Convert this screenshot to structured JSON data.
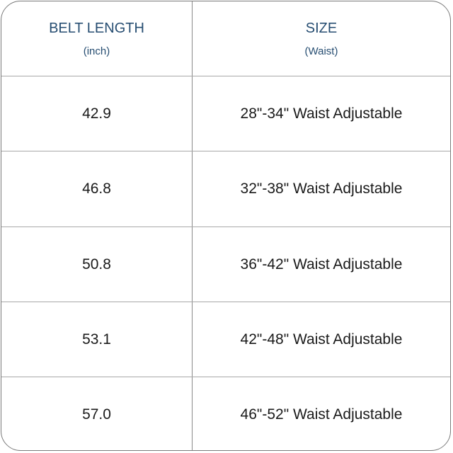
{
  "header": {
    "col1": {
      "title": "BELT LENGTH",
      "subtitle": "(inch)"
    },
    "col2": {
      "title": "SIZE",
      "subtitle": "(Waist)"
    }
  },
  "rows": [
    {
      "length": "42.9",
      "size": "28\"-34\" Waist Adjustable"
    },
    {
      "length": "46.8",
      "size": "32\"-38\" Waist Adjustable"
    },
    {
      "length": "50.8",
      "size": "36\"-42\" Waist Adjustable"
    },
    {
      "length": "53.1",
      "size": "42\"-48\" Waist Adjustable"
    },
    {
      "length": "57.0",
      "size": "46\"-52\" Waist Adjustable"
    }
  ],
  "colors": {
    "header_text": "#274e72",
    "border": "#7a7a7a"
  }
}
